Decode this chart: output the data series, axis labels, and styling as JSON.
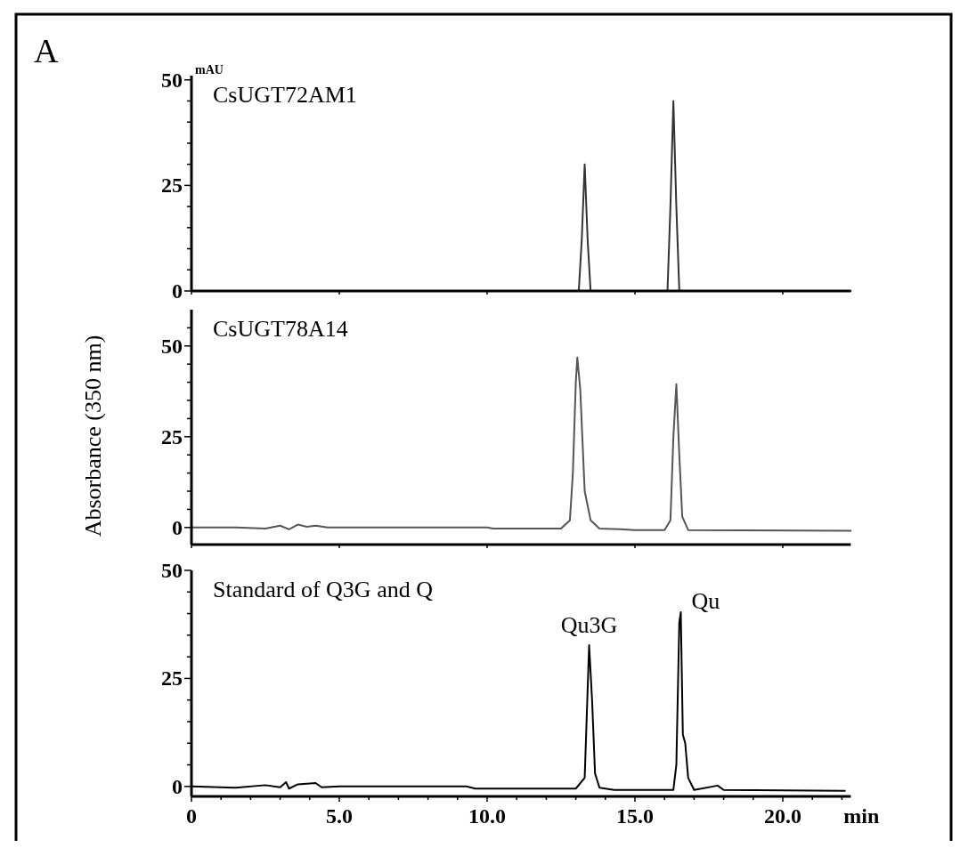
{
  "chart_data": [
    {
      "type": "line",
      "title": "CsUGT72AM1",
      "annotations": [
        "A",
        "mAU"
      ],
      "tick_labels": "y",
      "xlim": [
        0,
        22.3
      ],
      "ylim": [
        0,
        51
      ],
      "xticks": [
        {
          "value": 0,
          "label": null
        },
        {
          "value": 5,
          "label": null
        },
        {
          "value": 10,
          "label": null
        },
        {
          "value": 15,
          "label": null
        },
        {
          "value": 20,
          "label": null
        }
      ],
      "yticks": [
        0,
        {
          "value": 5,
          "label": null
        },
        {
          "value": 10,
          "label": null
        },
        {
          "value": 15,
          "label": null
        },
        {
          "value": 20,
          "label": null
        },
        25,
        {
          "value": 30,
          "label": null
        },
        {
          "value": 35,
          "label": null
        },
        {
          "value": 40,
          "label": null
        },
        {
          "value": 45,
          "label": null
        },
        50
      ],
      "series": [
        {
          "color": "#333333",
          "x": [
            0,
            1.5,
            3,
            5,
            10,
            12.9,
            13.1,
            13.2,
            13.3,
            13.4,
            13.5,
            13.7,
            15.9,
            16.1,
            16.2,
            16.3,
            16.4,
            16.5,
            16.7,
            22.3
          ],
          "values": [
            0,
            0,
            0,
            0,
            0,
            0,
            0,
            12,
            30,
            12,
            0,
            0,
            0,
            0,
            20,
            45,
            20,
            0,
            0,
            0
          ]
        }
      ]
    },
    {
      "type": "line",
      "title": "CsUGT78A14",
      "ylabel": "Absorbance (350 nm)",
      "tick_labels": "y",
      "xlim": [
        0,
        22.3
      ],
      "ylim": [
        -4.7,
        60
      ],
      "xticks": [
        {
          "value": 0,
          "label": null
        },
        {
          "value": 5,
          "label": null
        },
        {
          "value": 10,
          "label": null
        },
        {
          "value": 15,
          "label": null
        },
        {
          "value": 20,
          "label": null
        }
      ],
      "yticks": [
        0,
        {
          "value": 5,
          "label": null
        },
        {
          "value": 10,
          "label": null
        },
        {
          "value": 15,
          "label": null
        },
        {
          "value": 20,
          "label": null
        },
        25,
        {
          "value": 30,
          "label": null
        },
        {
          "value": 35,
          "label": null
        },
        {
          "value": 40,
          "label": null
        },
        {
          "value": 45,
          "label": null
        },
        50,
        {
          "value": 55,
          "label": null
        }
      ],
      "series": [
        {
          "color": "#555555",
          "x": [
            0,
            1.5,
            2.5,
            3,
            3.3,
            3.6,
            3.9,
            4.2,
            4.6,
            5.5,
            10,
            10.2,
            12.5,
            12.8,
            12.9,
            13,
            13.05,
            13.15,
            13.3,
            13.5,
            13.8,
            14.5,
            15,
            16,
            16.2,
            16.3,
            16.4,
            16.5,
            16.6,
            16.8,
            22.3
          ],
          "values": [
            0,
            0,
            -0.3,
            0.5,
            -0.5,
            0.8,
            0.2,
            0.5,
            0,
            0,
            0,
            -0.3,
            -0.3,
            2,
            15,
            40,
            46.8,
            38,
            10,
            2,
            -0.3,
            -0.5,
            -0.7,
            -0.7,
            2,
            25,
            39.5,
            20,
            3,
            -0.7,
            -0.9
          ]
        }
      ]
    },
    {
      "type": "line",
      "title": "Standard of Q3G and Q",
      "xlabel": "min",
      "annotations": [
        {
          "text": "Qu3G",
          "x": 13.45,
          "y": 32.7
        },
        {
          "text": "Qu",
          "x": 16.55,
          "y": 40.3
        }
      ],
      "xlim": [
        0,
        22.3
      ],
      "ylim": [
        -2.3,
        50
      ],
      "xticks": [
        0,
        {
          "value": 1,
          "label": null
        },
        {
          "value": 2,
          "label": null
        },
        {
          "value": 3,
          "label": null
        },
        {
          "value": 4,
          "label": null
        },
        {
          "value": 5,
          "label": "5.0"
        },
        {
          "value": 6,
          "label": null
        },
        {
          "value": 7,
          "label": null
        },
        {
          "value": 8,
          "label": null
        },
        {
          "value": 9,
          "label": null
        },
        {
          "value": 10,
          "label": "10.0"
        },
        {
          "value": 11,
          "label": null
        },
        {
          "value": 12,
          "label": null
        },
        {
          "value": 13,
          "label": null
        },
        {
          "value": 14,
          "label": null
        },
        {
          "value": 15,
          "label": "15.0"
        },
        {
          "value": 16,
          "label": null
        },
        {
          "value": 17,
          "label": null
        },
        {
          "value": 18,
          "label": null
        },
        {
          "value": 19,
          "label": null
        },
        {
          "value": 20,
          "label": "20.0"
        },
        {
          "value": 21,
          "label": null
        },
        {
          "value": 22,
          "label": null
        }
      ],
      "yticks": [
        0,
        {
          "value": 5,
          "label": null
        },
        {
          "value": 10,
          "label": null
        },
        {
          "value": 15,
          "label": null
        },
        {
          "value": 20,
          "label": null
        },
        25,
        {
          "value": 30,
          "label": null
        },
        {
          "value": 35,
          "label": null
        },
        {
          "value": 40,
          "label": null
        },
        {
          "value": 45,
          "label": null
        },
        50
      ],
      "series": [
        {
          "color": "#000000",
          "x": [
            0,
            1.5,
            2.5,
            3,
            3.2,
            3.3,
            3.6,
            4.2,
            4.4,
            5,
            9.3,
            9.6,
            13,
            13.3,
            13.45,
            13.55,
            13.65,
            13.8,
            14.3,
            16.3,
            16.4,
            16.5,
            16.55,
            16.62,
            16.7,
            16.8,
            17,
            17.8,
            18,
            22.1
          ],
          "values": [
            0,
            -0.3,
            0.3,
            -0.2,
            1,
            -0.5,
            0.5,
            0.8,
            -0.2,
            0,
            0,
            -0.5,
            -0.5,
            2,
            32.7,
            20,
            3,
            -0.3,
            -0.8,
            -0.8,
            5,
            38,
            40.3,
            12,
            10,
            2,
            -0.8,
            0.2,
            -0.8,
            -1
          ]
        }
      ]
    }
  ]
}
